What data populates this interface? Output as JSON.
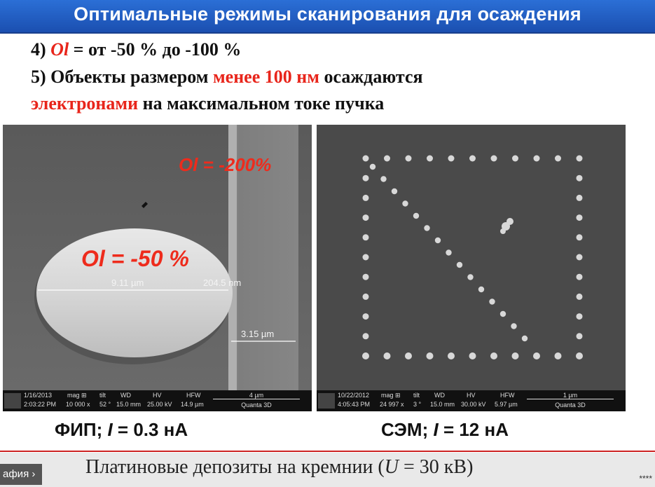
{
  "slide": {
    "title": "Оптимальные режимы сканирования для осаждения",
    "point4": {
      "num": "4) ",
      "ol": "Ol",
      "rest": " = от -50 % до -100 %"
    },
    "point5": {
      "part1": "5) Объекты размером ",
      "red1": "менее 100 нм",
      "part2": " осаждаются",
      "red2": "электронами",
      "part3": " на максимальном токе пучка"
    }
  },
  "left_image": {
    "overlay_top": "Ol = -200%",
    "overlay_mid": "Ol = -50 %",
    "label_width": "9.11 µm",
    "label_gap": "204.5 nm",
    "label_strip": "3.15 µm",
    "info": {
      "date": "1/16/2013",
      "time": "2:03:22 PM",
      "mag_h": "mag ⊞",
      "mag": "10 000 x",
      "tilt_h": "tilt",
      "tilt": "52 °",
      "wd_h": "WD",
      "wd": "15.0 mm",
      "hv_h": "HV",
      "hv": "25.00 kV",
      "hfw_h": "HFW",
      "hfw": "14.9 µm",
      "scale": "4 µm",
      "device": "Quanta 3D"
    }
  },
  "right_image": {
    "info": {
      "date": "10/22/2012",
      "time": "4:05:43 PM",
      "mag_h": "mag ⊞",
      "mag": "24 997 x",
      "tilt_h": "tilt",
      "tilt": "3 °",
      "wd_h": "WD",
      "wd": "15.0 mm",
      "hv_h": "HV",
      "hv": "30.00 kV",
      "hfw_h": "HFW",
      "hfw": "5.97 µm",
      "scale": "1 µm",
      "device": "Quanta 3D"
    }
  },
  "captions": {
    "left": {
      "a": "ФИП; ",
      "i": "I",
      "b": " = 0.3 нА"
    },
    "right": {
      "a": "СЭМ; ",
      "i": "I",
      "b": " = 12 нА"
    },
    "bottom": {
      "a": "Платиновые депозиты на кремнии (",
      "u": "U",
      "b": " = 30 кВ)"
    }
  },
  "nav": {
    "label": "афия ›"
  },
  "footer": {
    "stars": "****"
  },
  "colors": {
    "accent_red": "#e8251b",
    "title_blue": "#1f5cc4"
  }
}
